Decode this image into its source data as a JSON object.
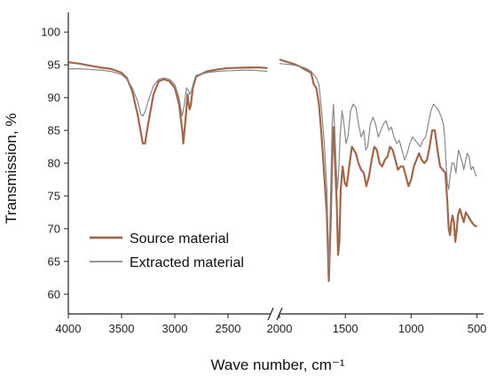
{
  "chart_data": {
    "type": "line",
    "xlabel": "Wave number, cm⁻¹",
    "ylabel": "Transmission, %",
    "x_reversed": true,
    "x_break": [
      2100,
      2000
    ],
    "xlim_left": [
      4000,
      2100
    ],
    "xlim_right": [
      2000,
      450
    ],
    "ylim": [
      57,
      103
    ],
    "xticks": [
      4000,
      3500,
      3000,
      2500,
      2000,
      1500,
      1000,
      500
    ],
    "yticks": [
      60,
      65,
      70,
      75,
      80,
      85,
      90,
      95,
      100
    ],
    "grid": false,
    "legend_position": "bottom-left",
    "series": [
      {
        "name": "Source material",
        "color": "#a0674a",
        "width": 2.2,
        "points": [
          [
            4000,
            95.4
          ],
          [
            3900,
            95.2
          ],
          [
            3800,
            94.9
          ],
          [
            3700,
            94.6
          ],
          [
            3600,
            94.4
          ],
          [
            3500,
            93.8
          ],
          [
            3450,
            93.0
          ],
          [
            3400,
            91.0
          ],
          [
            3350,
            87.5
          ],
          [
            3300,
            83.0
          ],
          [
            3280,
            83.0
          ],
          [
            3250,
            86.0
          ],
          [
            3200,
            90.5
          ],
          [
            3150,
            92.5
          ],
          [
            3100,
            92.8
          ],
          [
            3050,
            92.5
          ],
          [
            3000,
            91.5
          ],
          [
            2960,
            89.0
          ],
          [
            2930,
            85.0
          ],
          [
            2920,
            83.0
          ],
          [
            2900,
            86.5
          ],
          [
            2880,
            90.5
          ],
          [
            2870,
            89.0
          ],
          [
            2860,
            88.2
          ],
          [
            2850,
            88.8
          ],
          [
            2830,
            91.5
          ],
          [
            2800,
            93.2
          ],
          [
            2700,
            94.0
          ],
          [
            2600,
            94.3
          ],
          [
            2500,
            94.5
          ],
          [
            2300,
            94.6
          ],
          [
            2200,
            94.6
          ],
          [
            2130,
            94.5
          ],
          [
            2000,
            95.8
          ],
          [
            1900,
            95.2
          ],
          [
            1850,
            94.8
          ],
          [
            1800,
            94.2
          ],
          [
            1760,
            93.8
          ],
          [
            1740,
            92.0
          ],
          [
            1720,
            91.5
          ],
          [
            1700,
            89.0
          ],
          [
            1680,
            84.0
          ],
          [
            1660,
            78.0
          ],
          [
            1640,
            72.0
          ],
          [
            1625,
            62.0
          ],
          [
            1610,
            72.0
          ],
          [
            1600,
            81.0
          ],
          [
            1590,
            85.5
          ],
          [
            1580,
            81.0
          ],
          [
            1565,
            74.0
          ],
          [
            1555,
            66.0
          ],
          [
            1545,
            68.0
          ],
          [
            1535,
            76.0
          ],
          [
            1520,
            79.5
          ],
          [
            1505,
            77.0
          ],
          [
            1490,
            76.5
          ],
          [
            1470,
            79.5
          ],
          [
            1450,
            82.5
          ],
          [
            1420,
            81.5
          ],
          [
            1400,
            80.0
          ],
          [
            1380,
            79.0
          ],
          [
            1360,
            78.5
          ],
          [
            1340,
            76.5
          ],
          [
            1320,
            78.0
          ],
          [
            1300,
            80.5
          ],
          [
            1280,
            82.5
          ],
          [
            1260,
            82.0
          ],
          [
            1240,
            80.0
          ],
          [
            1220,
            79.5
          ],
          [
            1200,
            80.5
          ],
          [
            1180,
            81.0
          ],
          [
            1160,
            82.5
          ],
          [
            1140,
            82.0
          ],
          [
            1120,
            80.5
          ],
          [
            1100,
            79.0
          ],
          [
            1080,
            79.5
          ],
          [
            1060,
            79.5
          ],
          [
            1040,
            78.0
          ],
          [
            1020,
            76.5
          ],
          [
            1000,
            77.5
          ],
          [
            980,
            79.5
          ],
          [
            960,
            80.5
          ],
          [
            940,
            81.5
          ],
          [
            920,
            80.5
          ],
          [
            900,
            80.0
          ],
          [
            880,
            80.5
          ],
          [
            860,
            82.5
          ],
          [
            840,
            85.0
          ],
          [
            820,
            85.0
          ],
          [
            800,
            82.0
          ],
          [
            780,
            79.5
          ],
          [
            760,
            79.0
          ],
          [
            740,
            78.5
          ],
          [
            725,
            74.0
          ],
          [
            715,
            70.0
          ],
          [
            705,
            69.0
          ],
          [
            695,
            71.0
          ],
          [
            685,
            72.0
          ],
          [
            675,
            71.0
          ],
          [
            665,
            68.0
          ],
          [
            655,
            69.5
          ],
          [
            645,
            72.0
          ],
          [
            630,
            73.0
          ],
          [
            615,
            72.0
          ],
          [
            600,
            71.0
          ],
          [
            585,
            72.5
          ],
          [
            570,
            72.0
          ],
          [
            555,
            71.5
          ],
          [
            540,
            71.0
          ],
          [
            520,
            70.5
          ],
          [
            500,
            70.3
          ]
        ]
      },
      {
        "name": "Extracted material",
        "color": "#888888",
        "width": 1.2,
        "points": [
          [
            4000,
            94.4
          ],
          [
            3900,
            94.4
          ],
          [
            3800,
            94.3
          ],
          [
            3700,
            94.2
          ],
          [
            3600,
            94.0
          ],
          [
            3500,
            93.5
          ],
          [
            3450,
            92.8
          ],
          [
            3400,
            91.5
          ],
          [
            3350,
            89.5
          ],
          [
            3320,
            87.5
          ],
          [
            3300,
            87.2
          ],
          [
            3280,
            87.8
          ],
          [
            3250,
            89.5
          ],
          [
            3200,
            91.8
          ],
          [
            3150,
            92.8
          ],
          [
            3100,
            93.0
          ],
          [
            3050,
            92.8
          ],
          [
            3000,
            92.0
          ],
          [
            2960,
            90.0
          ],
          [
            2940,
            88.0
          ],
          [
            2930,
            87.2
          ],
          [
            2910,
            89.0
          ],
          [
            2890,
            91.5
          ],
          [
            2870,
            91.0
          ],
          [
            2860,
            90.5
          ],
          [
            2845,
            91.0
          ],
          [
            2820,
            92.5
          ],
          [
            2800,
            93.4
          ],
          [
            2700,
            93.8
          ],
          [
            2600,
            94.0
          ],
          [
            2500,
            94.1
          ],
          [
            2300,
            94.2
          ],
          [
            2200,
            94.1
          ],
          [
            2130,
            94.0
          ],
          [
            2000,
            95.2
          ],
          [
            1900,
            95.0
          ],
          [
            1850,
            94.8
          ],
          [
            1800,
            94.5
          ],
          [
            1760,
            94.0
          ],
          [
            1740,
            93.5
          ],
          [
            1720,
            93.0
          ],
          [
            1700,
            92.0
          ],
          [
            1680,
            88.0
          ],
          [
            1660,
            83.0
          ],
          [
            1640,
            76.0
          ],
          [
            1625,
            64.0
          ],
          [
            1610,
            77.0
          ],
          [
            1600,
            86.0
          ],
          [
            1590,
            89.0
          ],
          [
            1580,
            85.0
          ],
          [
            1570,
            80.0
          ],
          [
            1560,
            76.0
          ],
          [
            1550,
            79.0
          ],
          [
            1540,
            84.0
          ],
          [
            1525,
            88.0
          ],
          [
            1510,
            86.0
          ],
          [
            1495,
            83.0
          ],
          [
            1480,
            84.0
          ],
          [
            1460,
            88.0
          ],
          [
            1440,
            89.0
          ],
          [
            1420,
            88.5
          ],
          [
            1400,
            86.0
          ],
          [
            1380,
            84.0
          ],
          [
            1360,
            85.0
          ],
          [
            1345,
            82.0
          ],
          [
            1330,
            82.5
          ],
          [
            1310,
            86.0
          ],
          [
            1290,
            87.0
          ],
          [
            1270,
            86.0
          ],
          [
            1250,
            84.0
          ],
          [
            1230,
            85.0
          ],
          [
            1210,
            86.0
          ],
          [
            1190,
            86.5
          ],
          [
            1170,
            85.0
          ],
          [
            1150,
            85.5
          ],
          [
            1130,
            84.0
          ],
          [
            1110,
            83.0
          ],
          [
            1090,
            83.5
          ],
          [
            1070,
            82.0
          ],
          [
            1050,
            80.5
          ],
          [
            1030,
            81.5
          ],
          [
            1010,
            83.0
          ],
          [
            990,
            84.0
          ],
          [
            970,
            83.5
          ],
          [
            950,
            83.0
          ],
          [
            930,
            82.5
          ],
          [
            910,
            83.5
          ],
          [
            890,
            84.0
          ],
          [
            870,
            86.0
          ],
          [
            850,
            88.0
          ],
          [
            830,
            89.0
          ],
          [
            810,
            88.5
          ],
          [
            790,
            88.0
          ],
          [
            770,
            87.0
          ],
          [
            755,
            86.0
          ],
          [
            745,
            84.0
          ],
          [
            735,
            80.0
          ],
          [
            725,
            77.0
          ],
          [
            715,
            76.0
          ],
          [
            705,
            78.0
          ],
          [
            690,
            80.0
          ],
          [
            675,
            80.0
          ],
          [
            660,
            78.5
          ],
          [
            650,
            80.5
          ],
          [
            640,
            82.0
          ],
          [
            625,
            81.0
          ],
          [
            610,
            80.0
          ],
          [
            600,
            79.0
          ],
          [
            590,
            80.0
          ],
          [
            575,
            81.5
          ],
          [
            560,
            81.0
          ],
          [
            545,
            79.0
          ],
          [
            530,
            79.5
          ],
          [
            515,
            78.5
          ],
          [
            505,
            78.0
          ]
        ]
      }
    ]
  }
}
